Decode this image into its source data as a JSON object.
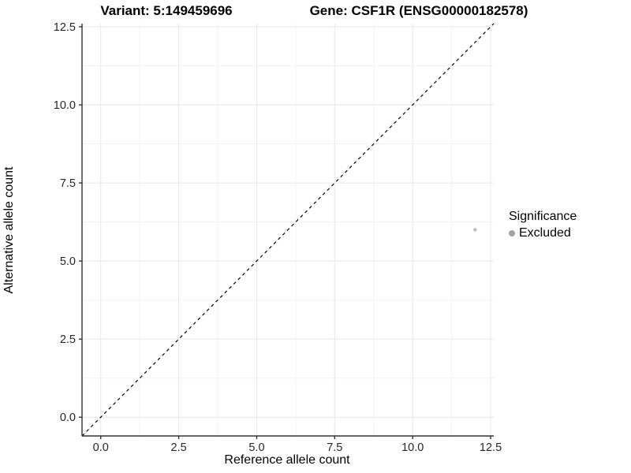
{
  "title_left": "Variant: 5:149459696",
  "title_right": "Gene: CSF1R (ENSG00000182578)",
  "chart_data": {
    "type": "scatter",
    "title": "Variant: 5:149459696  Gene: CSF1R (ENSG00000182578)",
    "xlabel": "Reference allele count",
    "ylabel": "Alternative allele count",
    "xlim": [
      -0.6,
      12.6
    ],
    "ylim": [
      -0.6,
      12.6
    ],
    "x_ticks": [
      0.0,
      2.5,
      5.0,
      7.5,
      10.0,
      12.5
    ],
    "y_ticks": [
      0.0,
      2.5,
      5.0,
      7.5,
      10.0,
      12.5
    ],
    "grid": true,
    "series": [
      {
        "name": "Excluded",
        "color": "#bcbcbc",
        "point_radius": 2.2,
        "points": [
          {
            "x": 12,
            "y": 6
          }
        ]
      }
    ],
    "reference_line": {
      "label": "identity-diagonal",
      "from": [
        -0.6,
        -0.6
      ],
      "to": [
        12.6,
        12.6
      ],
      "style": "dashed",
      "color": "#000000"
    },
    "legend": {
      "title": "Significance",
      "position": "right",
      "entries": [
        {
          "label": "Excluded",
          "color": "#a3a3a3"
        }
      ]
    },
    "colors": {
      "axis_line": "#333333",
      "tick_mark": "#333333",
      "tick_label": "#262626",
      "grid_major": "#e6e6e6",
      "grid_minor": "#f2f2f2",
      "panel_background": "#ffffff"
    }
  }
}
